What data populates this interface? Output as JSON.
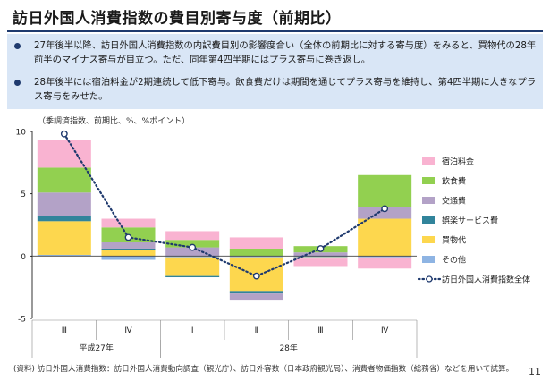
{
  "title": "訪日外国人消費指数の費目別寄与度（前期比）",
  "bullets": [
    "27年後半以降、訪日外国人消費指数の内訳費目別の影響度合い（全体の前期比に対する寄与度）をみると、買物代の28年前半のマイナス寄与が目立つ。ただ、同年第4四半期にはプラス寄与に巻き返し。",
    "28年後半には宿泊料金が2期連続して低下寄与。飲食費だけは期間を通じてプラス寄与を維持し、第4四半期に大きなプラス寄与をみせた。"
  ],
  "unit_note": "（季調済指数、前期比、%、%ポイント）",
  "source_note": "(資料) 訪日外国人消費指数：訪日外国人消費動向調査（観光庁）、訪日外客数（日本政府観光局）、消費者物価指数（総務省）などを用いて試算。",
  "page_number": "11",
  "colors": {
    "title_rule": "#1f3a6e",
    "bullet_bg": "#d9e6f6",
    "bullet_dot": "#1f3a6e"
  },
  "chart_data": {
    "type": "bar",
    "stacked": true,
    "categories": [
      "Ⅲ",
      "Ⅳ",
      "Ⅰ",
      "Ⅱ",
      "Ⅲ",
      "Ⅳ"
    ],
    "year_groups": [
      {
        "label": "平成27年",
        "from": 0,
        "to": 1
      },
      {
        "label": "28年",
        "from": 2,
        "to": 5
      }
    ],
    "ylim": [
      -5,
      10
    ],
    "yticks": [
      -5,
      0,
      5,
      10
    ],
    "ytick_labels": [
      "-5",
      "0",
      "5",
      "10"
    ],
    "grid": false,
    "legend_position": "right",
    "series": [
      {
        "name": "その他",
        "color": "#8eb4e3",
        "values": [
          0.1,
          -0.3,
          -0.1,
          -0.1,
          -0.1,
          -0.1
        ]
      },
      {
        "name": "買物代",
        "color": "#fdd74e",
        "values": [
          2.7,
          0.5,
          -1.5,
          -2.7,
          -0.1,
          3.0
        ]
      },
      {
        "name": "娯楽サービス費",
        "color": "#31849b",
        "values": [
          0.4,
          0.1,
          -0.1,
          -0.2,
          0.0,
          0.0
        ]
      },
      {
        "name": "交通費",
        "color": "#b3a2c7",
        "values": [
          1.9,
          0.5,
          0.7,
          -0.5,
          0.3,
          0.9
        ]
      },
      {
        "name": "飲食費",
        "color": "#92d050",
        "values": [
          2.0,
          1.2,
          0.6,
          0.6,
          0.5,
          2.6
        ]
      },
      {
        "name": "宿泊料金",
        "color": "#f9b3d1",
        "values": [
          2.2,
          0.7,
          0.7,
          0.9,
          -0.6,
          -0.9
        ]
      }
    ],
    "line": {
      "name": "訪日外国人消費指数全体",
      "color": "#1f3a6e",
      "values": [
        9.8,
        1.5,
        0.7,
        -1.6,
        0.6,
        3.8
      ]
    }
  }
}
